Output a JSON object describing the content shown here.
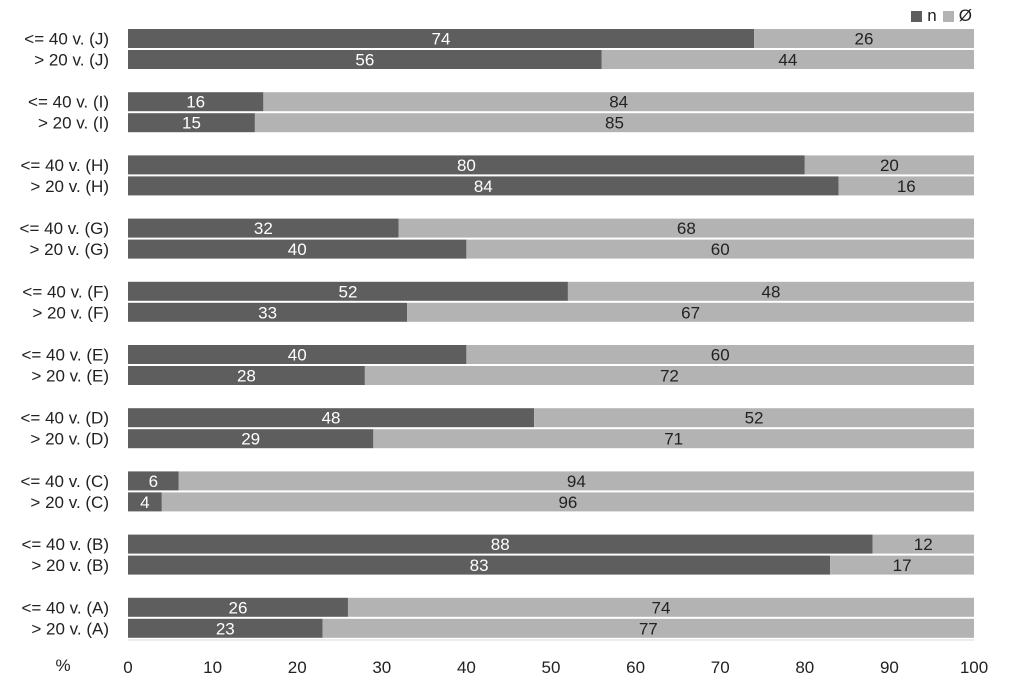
{
  "chart_data": {
    "type": "bar",
    "orientation": "horizontal",
    "stacked": true,
    "xlabel": "%",
    "xlim": [
      0,
      100
    ],
    "xticks": [
      "0",
      "10",
      "20",
      "30",
      "40",
      "50",
      "60",
      "70",
      "80",
      "90",
      "100"
    ],
    "legend": {
      "position": "top-right"
    },
    "colors": {
      "n": "#5e5e5e",
      "empty": "#b3b3b3"
    },
    "series": [
      {
        "name": "n",
        "color": "#5e5e5e"
      },
      {
        "name": "Ø",
        "color": "#b3b3b3"
      }
    ],
    "groups": [
      {
        "id": "J",
        "bars": [
          {
            "label": "<= 40 v. (J)",
            "values": [
              74,
              26
            ]
          },
          {
            "label": "> 20 v. (J)",
            "values": [
              56,
              44
            ]
          }
        ]
      },
      {
        "id": "I",
        "bars": [
          {
            "label": "<= 40 v. (I)",
            "values": [
              16,
              84
            ]
          },
          {
            "label": "> 20 v. (I)",
            "values": [
              15,
              85
            ]
          }
        ]
      },
      {
        "id": "H",
        "bars": [
          {
            "label": "<= 40 v. (H)",
            "values": [
              80,
              20
            ]
          },
          {
            "label": "> 20 v. (H)",
            "values": [
              84,
              16
            ]
          }
        ]
      },
      {
        "id": "G",
        "bars": [
          {
            "label": "<= 40 v. (G)",
            "values": [
              32,
              68
            ]
          },
          {
            "label": "> 20 v. (G)",
            "values": [
              40,
              60
            ]
          }
        ]
      },
      {
        "id": "F",
        "bars": [
          {
            "label": "<= 40 v. (F)",
            "values": [
              52,
              48
            ]
          },
          {
            "label": "> 20 v. (F)",
            "values": [
              33,
              67
            ]
          }
        ]
      },
      {
        "id": "E",
        "bars": [
          {
            "label": "<= 40 v. (E)",
            "values": [
              40,
              60
            ]
          },
          {
            "label": "> 20 v. (E)",
            "values": [
              28,
              72
            ]
          }
        ]
      },
      {
        "id": "D",
        "bars": [
          {
            "label": "<= 40 v. (D)",
            "values": [
              48,
              52
            ]
          },
          {
            "label": "> 20 v. (D)",
            "values": [
              29,
              71
            ]
          }
        ]
      },
      {
        "id": "C",
        "bars": [
          {
            "label": "<= 40 v. (C)",
            "values": [
              6,
              94
            ]
          },
          {
            "label": "> 20 v. (C)",
            "values": [
              4,
              96
            ]
          }
        ]
      },
      {
        "id": "B",
        "bars": [
          {
            "label": "<= 40 v. (B)",
            "values": [
              88,
              12
            ]
          },
          {
            "label": "> 20 v. (B)",
            "values": [
              83,
              17
            ]
          }
        ]
      },
      {
        "id": "A",
        "bars": [
          {
            "label": "<= 40 v. (A)",
            "values": [
              26,
              74
            ]
          },
          {
            "label": "> 20 v. (A)",
            "values": [
              23,
              77
            ]
          }
        ]
      }
    ]
  }
}
